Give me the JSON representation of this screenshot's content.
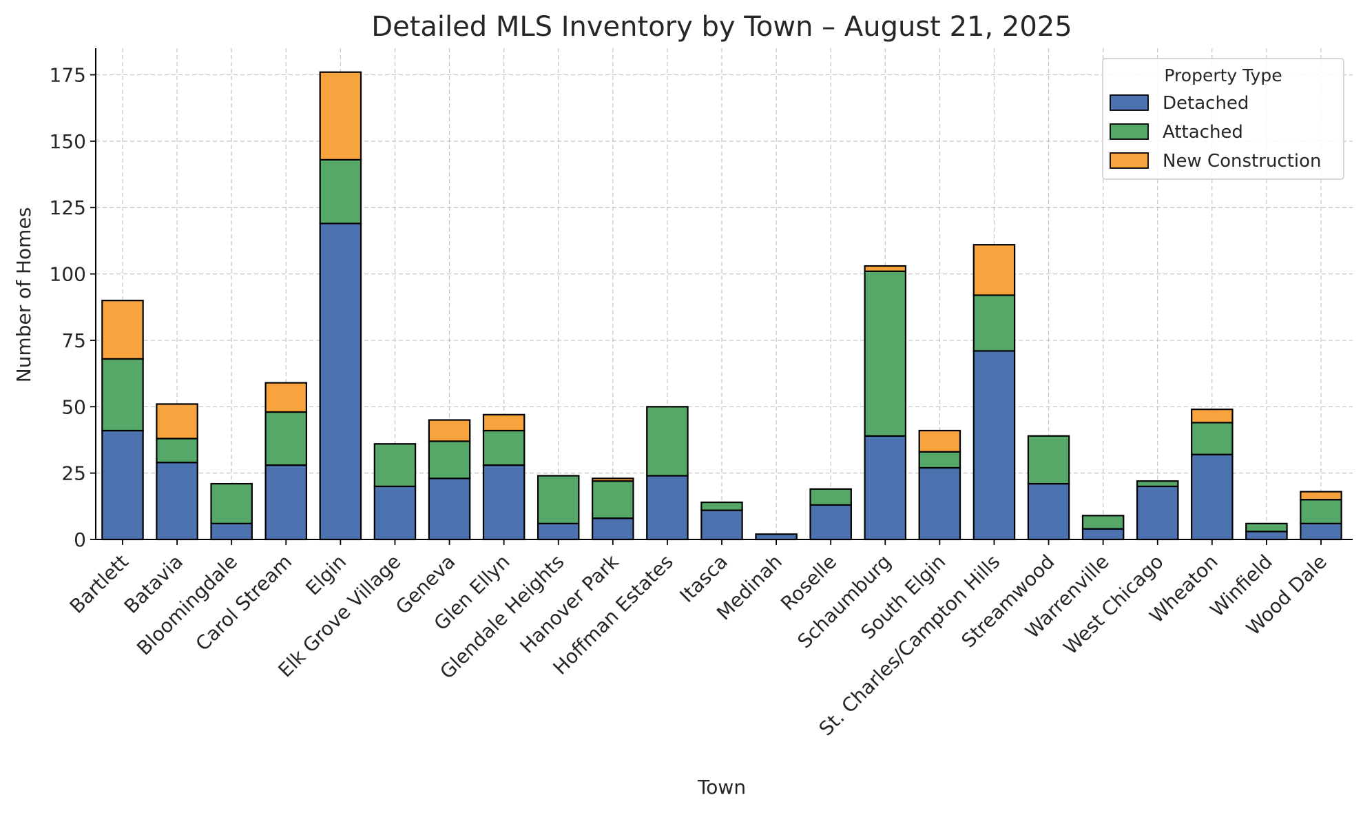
{
  "chart_data": {
    "type": "bar",
    "stacked": true,
    "title": "Detailed MLS Inventory by Town – August 21, 2025",
    "xlabel": "Town",
    "ylabel": "Number of Homes",
    "ylim": [
      0,
      185
    ],
    "yticks": [
      0,
      25,
      50,
      75,
      100,
      125,
      150,
      175
    ],
    "grid": true,
    "legend": {
      "title": "Property Type",
      "placement": "top-right"
    },
    "categories": [
      "Bartlett",
      "Batavia",
      "Bloomingdale",
      "Carol Stream",
      "Elgin",
      "Elk Grove Village",
      "Geneva",
      "Glen Ellyn",
      "Glendale Heights",
      "Hanover Park",
      "Hoffman Estates",
      "Itasca",
      "Medinah",
      "Roselle",
      "Schaumburg",
      "South Elgin",
      "St. Charles/Campton Hills",
      "Streamwood",
      "Warrenville",
      "West Chicago",
      "Wheaton",
      "Winfield",
      "Wood Dale"
    ],
    "series": [
      {
        "name": "Detached",
        "color": "#4c72b0",
        "values": [
          41,
          29,
          6,
          28,
          119,
          20,
          23,
          28,
          6,
          8,
          24,
          11,
          2,
          13,
          39,
          27,
          71,
          21,
          4,
          20,
          32,
          3,
          6
        ]
      },
      {
        "name": "Attached",
        "color": "#55a868",
        "values": [
          27,
          9,
          15,
          20,
          24,
          16,
          14,
          13,
          18,
          14,
          26,
          3,
          0,
          6,
          62,
          6,
          21,
          18,
          5,
          2,
          12,
          3,
          9
        ]
      },
      {
        "name": "New Construction",
        "color": "#f8a43e",
        "values": [
          22,
          13,
          0,
          11,
          33,
          0,
          8,
          6,
          0,
          1,
          0,
          0,
          0,
          0,
          2,
          8,
          19,
          0,
          0,
          0,
          5,
          0,
          3
        ]
      }
    ]
  }
}
